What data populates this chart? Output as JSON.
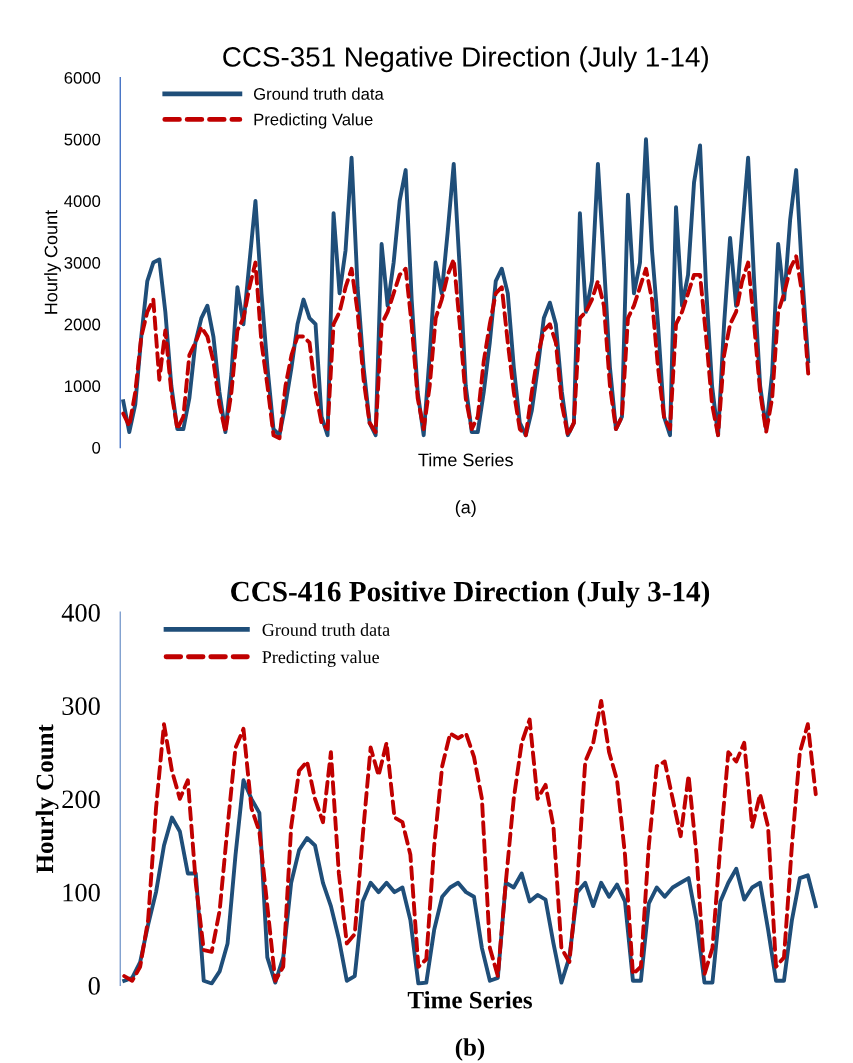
{
  "chart_data": [
    {
      "type": "line",
      "title": "CCS-351 Negative Direction (July 1-14)",
      "xlabel": "Time Series",
      "ylabel": "Hourly Count",
      "annotations": [
        "(a)"
      ],
      "categories": [
        null,
        null,
        null,
        null,
        null,
        null,
        null,
        null,
        null,
        null,
        null,
        null,
        null,
        null,
        null,
        null,
        null,
        null,
        null,
        null,
        null,
        null,
        null,
        null,
        null,
        null,
        null,
        null,
        null,
        null,
        null,
        null,
        null,
        null,
        null,
        null,
        null,
        null,
        null,
        null,
        null,
        null,
        null,
        null,
        null,
        null,
        null,
        null,
        null,
        null,
        null,
        null,
        null,
        null,
        null,
        null,
        null,
        null,
        null,
        null,
        null,
        null,
        null,
        null,
        null,
        null,
        null,
        null,
        null,
        null,
        null,
        null,
        null,
        null,
        null,
        null,
        null,
        null,
        null,
        null,
        null,
        null,
        null,
        null,
        null,
        null,
        null,
        null,
        null,
        null,
        null,
        null,
        null,
        null,
        null,
        null,
        null,
        null,
        null,
        null,
        null,
        null,
        null,
        null,
        null,
        null,
        null,
        null,
        null,
        null,
        null,
        null,
        null,
        null,
        null
      ],
      "series": [
        {
          "name": "Ground truth data",
          "color": "#1f4e79",
          "line_style": "solid",
          "values": [
            750,
            250,
            700,
            1800,
            2700,
            3000,
            3050,
            2200,
            1000,
            300,
            300,
            800,
            1700,
            2100,
            2300,
            1800,
            900,
            250,
            1200,
            2600,
            2000,
            3000,
            4000,
            2500,
            1300,
            300,
            200,
            700,
            1300,
            2000,
            2400,
            2100,
            2000,
            500,
            200,
            3800,
            2500,
            3200,
            4700,
            2600,
            1300,
            400,
            200,
            3300,
            2300,
            3000,
            4000,
            4500,
            2400,
            900,
            200,
            1500,
            3000,
            2500,
            3500,
            4600,
            2900,
            1000,
            250,
            250,
            900,
            1700,
            2700,
            2900,
            2500,
            1300,
            400,
            200,
            600,
            1300,
            2100,
            2350,
            2000,
            900,
            200,
            400,
            3800,
            2200,
            2700,
            4600,
            3000,
            1300,
            300,
            500,
            4100,
            2500,
            3000,
            5000,
            3200,
            2000,
            500,
            200,
            3900,
            2300,
            2800,
            4300,
            4900,
            2600,
            1000,
            200,
            2000,
            3400,
            2300,
            3500,
            4700,
            2700,
            1000,
            300,
            1200,
            3300,
            2400,
            3700,
            4500,
            2800,
            1400
          ]
        },
        {
          "name": "Predicting Value",
          "color": "#c00000",
          "line_style": "dashed",
          "values": [
            550,
            350,
            900,
            1800,
            2200,
            2400,
            1100,
            1900,
            900,
            300,
            500,
            1500,
            1700,
            1950,
            1800,
            1400,
            700,
            250,
            900,
            1900,
            2100,
            2600,
            3000,
            1700,
            1000,
            200,
            150,
            1000,
            1500,
            1800,
            1800,
            1700,
            900,
            400,
            300,
            2000,
            2200,
            2600,
            2900,
            2200,
            1100,
            400,
            250,
            2000,
            2200,
            2500,
            2800,
            2900,
            2000,
            800,
            300,
            1000,
            2100,
            2400,
            2800,
            3050,
            2000,
            800,
            300,
            500,
            1400,
            2000,
            2500,
            2600,
            1700,
            900,
            300,
            200,
            900,
            1500,
            1900,
            2000,
            1700,
            700,
            200,
            400,
            2100,
            2200,
            2400,
            2700,
            2300,
            1000,
            300,
            500,
            2100,
            2300,
            2600,
            2900,
            2400,
            1300,
            500,
            300,
            2000,
            2200,
            2500,
            2800,
            2800,
            1800,
            700,
            200,
            1500,
            2000,
            2200,
            2700,
            3000,
            2000,
            900,
            250,
            800,
            2200,
            2500,
            2900,
            3100,
            2500,
            1200
          ]
        }
      ],
      "ylim": [
        0,
        6000
      ],
      "yticks": [
        0,
        1000,
        2000,
        3000,
        4000,
        5000,
        6000
      ],
      "tick_labels": "y",
      "legend": "top left"
    },
    {
      "type": "line",
      "title": "CCS-416 Positive Direction (July 3-14)",
      "xlabel": "Time Series",
      "ylabel": "Hourly Count",
      "annotations": [
        "(b)"
      ],
      "categories": [
        null,
        null,
        null,
        null,
        null,
        null,
        null,
        null,
        null,
        null,
        null,
        null,
        null,
        null,
        null,
        null,
        null,
        null,
        null,
        null,
        null,
        null,
        null,
        null,
        null,
        null,
        null,
        null,
        null,
        null,
        null,
        null,
        null,
        null,
        null,
        null,
        null,
        null,
        null,
        null,
        null,
        null,
        null,
        null,
        null,
        null,
        null,
        null,
        null,
        null,
        null,
        null,
        null,
        null,
        null,
        null,
        null,
        null,
        null,
        null,
        null,
        null,
        null,
        null,
        null,
        null,
        null,
        null,
        null,
        null,
        null,
        null,
        null,
        null,
        null,
        null,
        null,
        null,
        null,
        null,
        null,
        null,
        null,
        null,
        null,
        null,
        null,
        null
      ],
      "series": [
        {
          "name": "Ground truth data",
          "color": "#1f4e79",
          "line_style": "solid",
          "values": [
            5,
            8,
            25,
            65,
            100,
            150,
            180,
            165,
            120,
            120,
            5,
            2,
            15,
            45,
            140,
            220,
            200,
            185,
            30,
            3,
            30,
            110,
            145,
            158,
            150,
            110,
            85,
            50,
            5,
            10,
            90,
            110,
            100,
            110,
            100,
            105,
            70,
            2,
            3,
            60,
            95,
            105,
            110,
            100,
            95,
            40,
            5,
            8,
            110,
            105,
            120,
            90,
            97,
            92,
            45,
            3,
            30,
            100,
            110,
            85,
            110,
            95,
            108,
            90,
            5,
            5,
            88,
            105,
            95,
            105,
            110,
            115,
            70,
            3,
            3,
            90,
            110,
            125,
            92,
            105,
            110,
            60,
            5,
            5,
            70,
            115,
            118,
            85
          ]
        },
        {
          "name": "Predicting value",
          "color": "#c00000",
          "line_style": "dashed",
          "values": [
            10,
            5,
            20,
            70,
            190,
            280,
            230,
            200,
            220,
            110,
            38,
            36,
            80,
            170,
            255,
            275,
            190,
            165,
            85,
            5,
            20,
            170,
            230,
            240,
            200,
            175,
            250,
            120,
            45,
            55,
            160,
            255,
            225,
            260,
            180,
            175,
            140,
            20,
            28,
            150,
            235,
            270,
            265,
            270,
            245,
            200,
            40,
            10,
            110,
            200,
            260,
            285,
            200,
            215,
            170,
            40,
            25,
            110,
            240,
            260,
            305,
            250,
            220,
            140,
            12,
            20,
            150,
            235,
            240,
            200,
            160,
            225,
            140,
            12,
            40,
            150,
            250,
            240,
            260,
            170,
            205,
            170,
            20,
            30,
            150,
            250,
            280,
            205
          ]
        }
      ],
      "ylim": [
        0,
        400
      ],
      "yticks": [
        0,
        100,
        200,
        300,
        400
      ],
      "tick_labels": "y",
      "legend": "top left"
    }
  ]
}
